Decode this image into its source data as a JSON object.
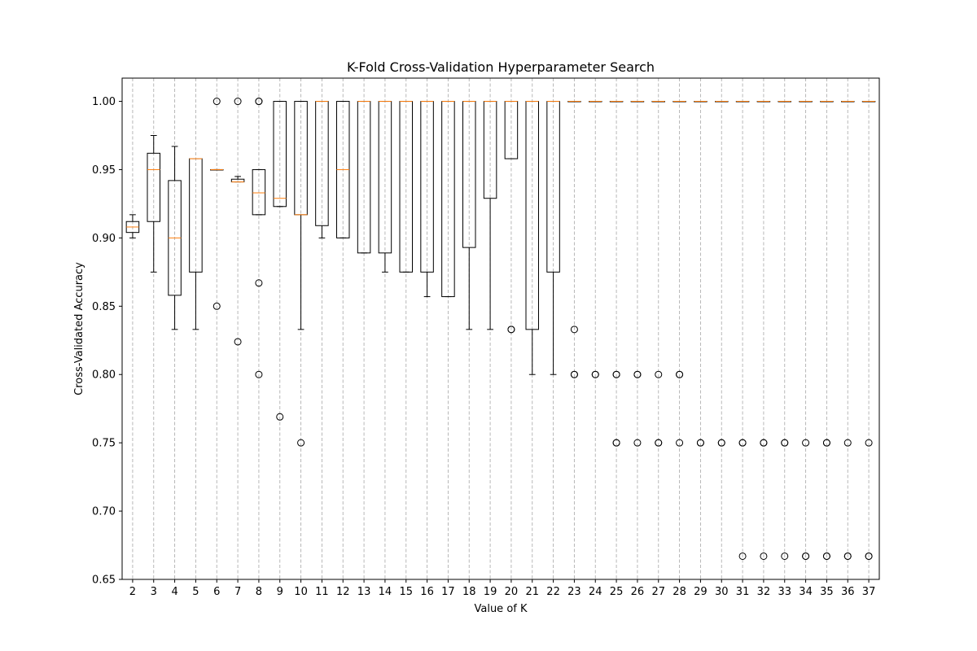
{
  "chart_data": {
    "type": "boxplot",
    "title": "K-Fold Cross-Validation Hyperparameter Search",
    "xlabel": "Value of K",
    "ylabel": "Cross-Validated Accuracy",
    "ylim": [
      0.65,
      1.017
    ],
    "y_ticks": [
      "0.65",
      "0.70",
      "0.75",
      "0.80",
      "0.85",
      "0.90",
      "0.95",
      "1.00"
    ],
    "grid": "x-axis dashed",
    "colors": {
      "box": "#000000",
      "median": "#ff7f0e",
      "grid": "#b0b0b0"
    },
    "categories": [
      "2",
      "3",
      "4",
      "5",
      "6",
      "7",
      "8",
      "9",
      "10",
      "11",
      "12",
      "13",
      "14",
      "15",
      "16",
      "17",
      "18",
      "19",
      "20",
      "21",
      "22",
      "23",
      "24",
      "25",
      "26",
      "27",
      "28",
      "29",
      "30",
      "31",
      "32",
      "33",
      "34",
      "35",
      "36",
      "37"
    ],
    "boxes": [
      {
        "k": "2",
        "whislo": 0.9,
        "q1": 0.904,
        "med": 0.908,
        "q3": 0.912,
        "whishi": 0.917,
        "fliers": []
      },
      {
        "k": "3",
        "whislo": 0.875,
        "q1": 0.912,
        "med": 0.95,
        "q3": 0.962,
        "whishi": 0.975,
        "fliers": []
      },
      {
        "k": "4",
        "whislo": 0.833,
        "q1": 0.858,
        "med": 0.9,
        "q3": 0.942,
        "whishi": 0.967,
        "fliers": []
      },
      {
        "k": "5",
        "whislo": 0.833,
        "q1": 0.875,
        "med": 0.958,
        "q3": 0.958,
        "whishi": 0.958,
        "fliers": []
      },
      {
        "k": "6",
        "whislo": 0.95,
        "q1": 0.95,
        "med": 0.95,
        "q3": 0.95,
        "whishi": 0.95,
        "fliers": [
          1.0,
          0.85
        ]
      },
      {
        "k": "7",
        "whislo": 0.941,
        "q1": 0.941,
        "med": 0.941,
        "q3": 0.943,
        "whishi": 0.945,
        "fliers": [
          1.0,
          0.824
        ]
      },
      {
        "k": "8",
        "whislo": 0.917,
        "q1": 0.917,
        "med": 0.933,
        "q3": 0.95,
        "whishi": 0.95,
        "fliers": [
          1.0,
          1.0,
          0.867,
          0.8
        ]
      },
      {
        "k": "9",
        "whislo": 0.923,
        "q1": 0.923,
        "med": 0.929,
        "q3": 1.0,
        "whishi": 1.0,
        "fliers": [
          0.769
        ]
      },
      {
        "k": "10",
        "whislo": 0.833,
        "q1": 0.917,
        "med": 0.917,
        "q3": 1.0,
        "whishi": 1.0,
        "fliers": [
          0.75
        ]
      },
      {
        "k": "11",
        "whislo": 0.9,
        "q1": 0.909,
        "med": 1.0,
        "q3": 1.0,
        "whishi": 1.0,
        "fliers": []
      },
      {
        "k": "12",
        "whislo": 0.9,
        "q1": 0.9,
        "med": 0.95,
        "q3": 1.0,
        "whishi": 1.0,
        "fliers": []
      },
      {
        "k": "13",
        "whislo": 0.889,
        "q1": 0.889,
        "med": 1.0,
        "q3": 1.0,
        "whishi": 1.0,
        "fliers": []
      },
      {
        "k": "14",
        "whislo": 0.875,
        "q1": 0.889,
        "med": 1.0,
        "q3": 1.0,
        "whishi": 1.0,
        "fliers": []
      },
      {
        "k": "15",
        "whislo": 0.875,
        "q1": 0.875,
        "med": 1.0,
        "q3": 1.0,
        "whishi": 1.0,
        "fliers": []
      },
      {
        "k": "16",
        "whislo": 0.857,
        "q1": 0.875,
        "med": 1.0,
        "q3": 1.0,
        "whishi": 1.0,
        "fliers": []
      },
      {
        "k": "17",
        "whislo": 0.857,
        "q1": 0.857,
        "med": 1.0,
        "q3": 1.0,
        "whishi": 1.0,
        "fliers": []
      },
      {
        "k": "18",
        "whislo": 0.833,
        "q1": 0.893,
        "med": 1.0,
        "q3": 1.0,
        "whishi": 1.0,
        "fliers": []
      },
      {
        "k": "19",
        "whislo": 0.833,
        "q1": 0.929,
        "med": 1.0,
        "q3": 1.0,
        "whishi": 1.0,
        "fliers": []
      },
      {
        "k": "20",
        "whislo": 0.958,
        "q1": 0.958,
        "med": 1.0,
        "q3": 1.0,
        "whishi": 1.0,
        "fliers": [
          0.833,
          0.833
        ]
      },
      {
        "k": "21",
        "whislo": 0.8,
        "q1": 0.833,
        "med": 1.0,
        "q3": 1.0,
        "whishi": 1.0,
        "fliers": []
      },
      {
        "k": "22",
        "whislo": 0.8,
        "q1": 0.875,
        "med": 1.0,
        "q3": 1.0,
        "whishi": 1.0,
        "fliers": []
      },
      {
        "k": "23",
        "whislo": 1.0,
        "q1": 1.0,
        "med": 1.0,
        "q3": 1.0,
        "whishi": 1.0,
        "fliers": [
          0.833,
          0.8,
          0.8
        ]
      },
      {
        "k": "24",
        "whislo": 1.0,
        "q1": 1.0,
        "med": 1.0,
        "q3": 1.0,
        "whishi": 1.0,
        "fliers": [
          0.8,
          0.8
        ]
      },
      {
        "k": "25",
        "whislo": 1.0,
        "q1": 1.0,
        "med": 1.0,
        "q3": 1.0,
        "whishi": 1.0,
        "fliers": [
          0.8,
          0.8,
          0.75,
          0.75
        ]
      },
      {
        "k": "26",
        "whislo": 1.0,
        "q1": 1.0,
        "med": 1.0,
        "q3": 1.0,
        "whishi": 1.0,
        "fliers": [
          0.8,
          0.8,
          0.75
        ]
      },
      {
        "k": "27",
        "whislo": 1.0,
        "q1": 1.0,
        "med": 1.0,
        "q3": 1.0,
        "whishi": 1.0,
        "fliers": [
          0.8,
          0.75,
          0.75
        ]
      },
      {
        "k": "28",
        "whislo": 1.0,
        "q1": 1.0,
        "med": 1.0,
        "q3": 1.0,
        "whishi": 1.0,
        "fliers": [
          0.8,
          0.8,
          0.75
        ]
      },
      {
        "k": "29",
        "whislo": 1.0,
        "q1": 1.0,
        "med": 1.0,
        "q3": 1.0,
        "whishi": 1.0,
        "fliers": [
          0.75,
          0.75
        ]
      },
      {
        "k": "30",
        "whislo": 1.0,
        "q1": 1.0,
        "med": 1.0,
        "q3": 1.0,
        "whishi": 1.0,
        "fliers": [
          0.75,
          0.75
        ]
      },
      {
        "k": "31",
        "whislo": 1.0,
        "q1": 1.0,
        "med": 1.0,
        "q3": 1.0,
        "whishi": 1.0,
        "fliers": [
          0.75,
          0.75,
          0.667
        ]
      },
      {
        "k": "32",
        "whislo": 1.0,
        "q1": 1.0,
        "med": 1.0,
        "q3": 1.0,
        "whishi": 1.0,
        "fliers": [
          0.75,
          0.75,
          0.667
        ]
      },
      {
        "k": "33",
        "whislo": 1.0,
        "q1": 1.0,
        "med": 1.0,
        "q3": 1.0,
        "whishi": 1.0,
        "fliers": [
          0.75,
          0.75,
          0.667
        ]
      },
      {
        "k": "34",
        "whislo": 1.0,
        "q1": 1.0,
        "med": 1.0,
        "q3": 1.0,
        "whishi": 1.0,
        "fliers": [
          0.75,
          0.667,
          0.667
        ]
      },
      {
        "k": "35",
        "whislo": 1.0,
        "q1": 1.0,
        "med": 1.0,
        "q3": 1.0,
        "whishi": 1.0,
        "fliers": [
          0.75,
          0.75,
          0.667,
          0.667
        ]
      },
      {
        "k": "36",
        "whislo": 1.0,
        "q1": 1.0,
        "med": 1.0,
        "q3": 1.0,
        "whishi": 1.0,
        "fliers": [
          0.75,
          0.667,
          0.667
        ]
      },
      {
        "k": "37",
        "whislo": 1.0,
        "q1": 1.0,
        "med": 1.0,
        "q3": 1.0,
        "whishi": 1.0,
        "fliers": [
          0.75,
          0.667,
          0.667
        ]
      }
    ]
  }
}
